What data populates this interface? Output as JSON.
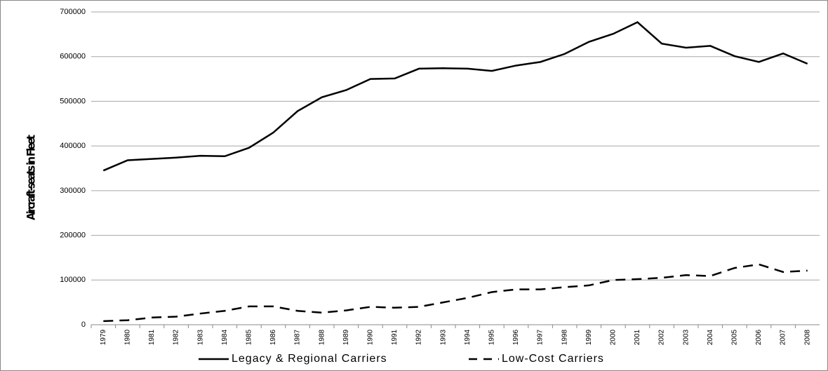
{
  "chart_data": {
    "type": "line",
    "y_label": "Aircraft-seats in Fleet",
    "categories": [
      "1979",
      "1980",
      "1981",
      "1982",
      "1983",
      "1984",
      "1985",
      "1986",
      "1987",
      "1988",
      "1989",
      "1990",
      "1991",
      "1992",
      "1993",
      "1994",
      "1995",
      "1996",
      "1997",
      "1998",
      "1999",
      "2000",
      "2001",
      "2002",
      "2003",
      "2004",
      "2005",
      "2006",
      "2007",
      "2008"
    ],
    "series": [
      {
        "name": "Legacy & Regional Carriers",
        "color": "#000000",
        "style": "solid",
        "values": [
          345000,
          368000,
          371000,
          374000,
          378000,
          377000,
          396000,
          430000,
          478000,
          509000,
          525000,
          550000,
          551000,
          573000,
          574000,
          573000,
          568000,
          580000,
          588000,
          606000,
          633000,
          651000,
          677000,
          629000,
          620000,
          624000,
          601000,
          588000,
          607000,
          584000
        ]
      },
      {
        "name": "Low-Cost Carriers",
        "color": "#000000",
        "style": "dashed",
        "values": [
          8000,
          10000,
          16000,
          18000,
          25000,
          31000,
          41000,
          41000,
          31000,
          27000,
          32000,
          40000,
          38000,
          40000,
          50000,
          60000,
          73000,
          79000,
          79000,
          84000,
          88000,
          100000,
          102000,
          105000,
          111000,
          109000,
          127000,
          135000,
          118000,
          121000
        ]
      }
    ],
    "ylim": [
      0,
      700000
    ],
    "yticks": [
      0,
      100000,
      200000,
      300000,
      400000,
      500000,
      600000,
      700000
    ],
    "grid": true,
    "legend": "bottom"
  }
}
